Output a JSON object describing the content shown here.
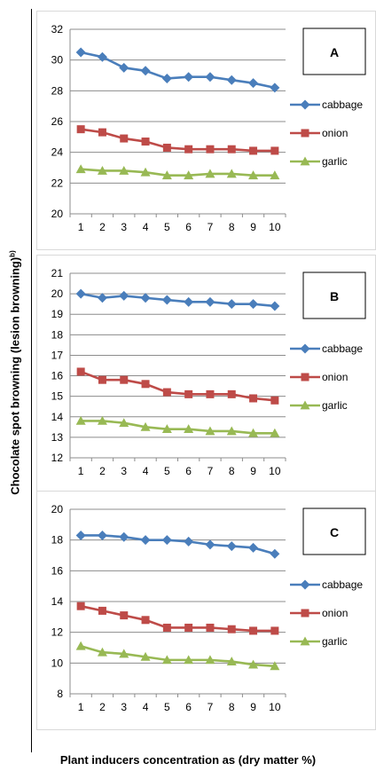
{
  "ylabel": "Chocolate spot browning (lesion browning)",
  "ylabel_superscript": "b)",
  "xlabel": "Plant inducers concentration as (dry matter %)",
  "colors": {
    "cabbage": "#4a7ebb",
    "onion": "#be4b48",
    "garlic": "#98b954",
    "grid": "#8c8c8c",
    "frame": "#000000"
  },
  "chart_data": [
    {
      "type": "line",
      "panel_label": "A",
      "x": [
        1,
        2,
        3,
        4,
        5,
        6,
        7,
        8,
        9,
        10
      ],
      "ylim": [
        20,
        32
      ],
      "yticks": [
        20,
        22,
        24,
        26,
        28,
        30,
        32
      ],
      "grid": true,
      "legend": "right",
      "series": [
        {
          "name": "cabbage",
          "marker": "diamond",
          "values": [
            30.5,
            30.2,
            29.5,
            29.3,
            28.8,
            28.9,
            28.9,
            28.7,
            28.5,
            28.2
          ]
        },
        {
          "name": "onion",
          "marker": "square",
          "values": [
            25.5,
            25.3,
            24.9,
            24.7,
            24.3,
            24.2,
            24.2,
            24.2,
            24.1,
            24.1
          ]
        },
        {
          "name": "garlic",
          "marker": "triangle",
          "values": [
            22.9,
            22.8,
            22.8,
            22.7,
            22.5,
            22.5,
            22.6,
            22.6,
            22.5,
            22.5
          ]
        }
      ]
    },
    {
      "type": "line",
      "panel_label": "B",
      "x": [
        1,
        2,
        3,
        4,
        5,
        6,
        7,
        8,
        9,
        10
      ],
      "ylim": [
        12,
        21
      ],
      "yticks": [
        12,
        13,
        14,
        15,
        16,
        17,
        18,
        19,
        20,
        21
      ],
      "grid": true,
      "legend": "right",
      "series": [
        {
          "name": "cabbage",
          "marker": "diamond",
          "values": [
            20.0,
            19.8,
            19.9,
            19.8,
            19.7,
            19.6,
            19.6,
            19.5,
            19.5,
            19.4
          ]
        },
        {
          "name": "onion",
          "marker": "square",
          "values": [
            16.2,
            15.8,
            15.8,
            15.6,
            15.2,
            15.1,
            15.1,
            15.1,
            14.9,
            14.8
          ]
        },
        {
          "name": "garlic",
          "marker": "triangle",
          "values": [
            13.8,
            13.8,
            13.7,
            13.5,
            13.4,
            13.4,
            13.3,
            13.3,
            13.2,
            13.2
          ]
        }
      ]
    },
    {
      "type": "line",
      "panel_label": "C",
      "x": [
        1,
        2,
        3,
        4,
        5,
        6,
        7,
        8,
        9,
        10
      ],
      "ylim": [
        8,
        20
      ],
      "yticks": [
        8,
        10,
        12,
        14,
        16,
        18,
        20
      ],
      "grid": true,
      "legend": "right",
      "series": [
        {
          "name": "cabbage",
          "marker": "diamond",
          "values": [
            18.3,
            18.3,
            18.2,
            18.0,
            18.0,
            17.9,
            17.7,
            17.6,
            17.5,
            17.1
          ]
        },
        {
          "name": "onion",
          "marker": "square",
          "values": [
            13.7,
            13.4,
            13.1,
            12.8,
            12.3,
            12.3,
            12.3,
            12.2,
            12.1,
            12.1
          ]
        },
        {
          "name": "garlic",
          "marker": "triangle",
          "values": [
            11.1,
            10.7,
            10.6,
            10.4,
            10.2,
            10.2,
            10.2,
            10.1,
            9.9,
            9.8
          ]
        }
      ]
    }
  ]
}
